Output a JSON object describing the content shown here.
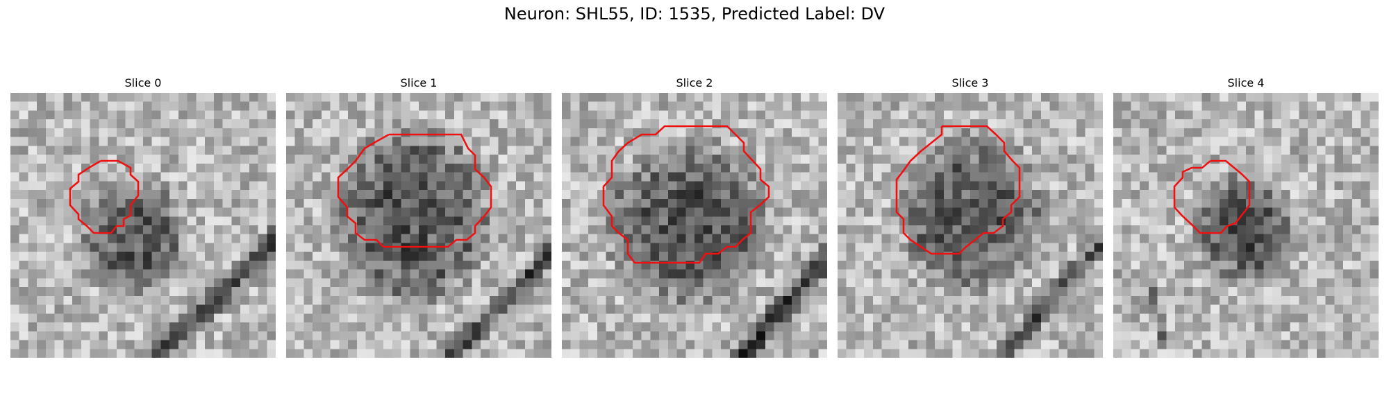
{
  "figure": {
    "title": "Neuron: SHL55, ID: 1535, Predicted Label: DV",
    "contour_color": "#ee1111"
  },
  "panels": [
    {
      "title": "Slice 0",
      "image": {
        "grid": 30,
        "blob": [
          0.46,
          0.55,
          0.19,
          0.22
        ],
        "streak": [
          [
            0.55,
            1.0
          ],
          [
            1.0,
            0.55
          ],
          0.06,
          0.24
        ],
        "noise_seed": 11
      }
    },
    {
      "title": "Slice 1",
      "image": {
        "grid": 30,
        "blob": [
          0.48,
          0.47,
          0.29,
          0.32
        ],
        "streak": [
          [
            0.62,
            1.0
          ],
          [
            1.0,
            0.6
          ],
          0.05,
          0.22
        ],
        "noise_seed": 23
      }
    },
    {
      "title": "Slice 2",
      "image": {
        "grid": 30,
        "blob": [
          0.48,
          0.49,
          0.3,
          0.3
        ],
        "streak": [
          [
            0.68,
            1.0
          ],
          [
            1.0,
            0.62
          ],
          0.06,
          0.26
        ],
        "noise_seed": 37
      }
    },
    {
      "title": "Slice 3",
      "image": {
        "grid": 30,
        "blob": [
          0.5,
          0.45,
          0.26,
          0.28
        ],
        "streak": [
          [
            0.62,
            1.0
          ],
          [
            1.0,
            0.56
          ],
          0.05,
          0.2
        ],
        "noise_seed": 53
      }
    },
    {
      "title": "Slice 4",
      "image": {
        "grid": 30,
        "blob": [
          0.5,
          0.52,
          0.18,
          0.2
        ],
        "streak": [
          [
            0.15,
            0.75
          ],
          [
            0.2,
            0.95
          ],
          0.03,
          0.14
        ],
        "noise_seed": 71
      }
    }
  ]
}
